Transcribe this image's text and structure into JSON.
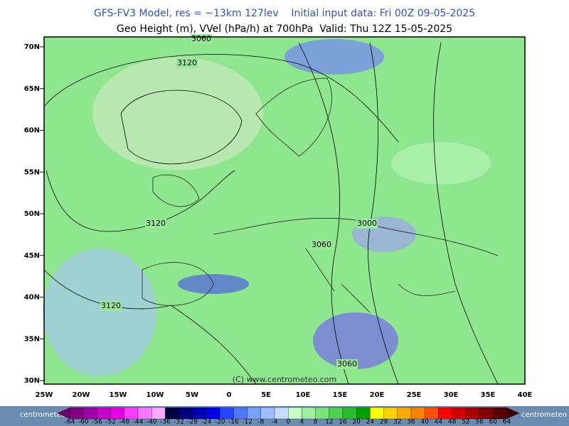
{
  "header": {
    "title_line1": "GFS-FV3 Model, res = ~13km 127lev    Initial input data: Fri 00Z 09-05-2025",
    "title_line2": "Geo Height (m), VVel (hPa/h) at 700hPa  Valid: Thu 12Z 15-05-2025"
  },
  "map": {
    "lat_labels": [
      "70N",
      "65N",
      "60N",
      "55N",
      "50N",
      "45N",
      "40N",
      "35N",
      "30N"
    ],
    "lon_labels": [
      "25W",
      "20W",
      "15W",
      "10W",
      "5W",
      "0",
      "5E",
      "10E",
      "15E",
      "20E",
      "25E",
      "30E",
      "35E",
      "40E"
    ],
    "contour_labels": [
      "3060",
      "3120",
      "3120",
      "3000",
      "3060",
      "3120",
      "3060"
    ],
    "copyright": "(C) www.centrometeo.com"
  },
  "colorbar": {
    "labels": [
      "-64",
      "-60",
      "-56",
      "-52",
      "-48",
      "-44",
      "-40",
      "-36",
      "-32",
      "-28",
      "-24",
      "-20",
      "-16",
      "-12",
      "-8",
      "-4",
      "0",
      "4",
      "8",
      "12",
      "16",
      "20",
      "24",
      "28",
      "32",
      "36",
      "40",
      "44",
      "48",
      "52",
      "56",
      "60",
      "64"
    ],
    "colors": [
      "#800080",
      "#a000a8",
      "#c800c8",
      "#e600e6",
      "#ff3cff",
      "#ff78ff",
      "#ffaaff",
      "#000040",
      "#000080",
      "#0000b4",
      "#0000e6",
      "#2846ff",
      "#5078ff",
      "#78a0ff",
      "#a0beff",
      "#c8dcff",
      "#c8ffc8",
      "#a0f0a0",
      "#78e678",
      "#50d250",
      "#28be28",
      "#00a000",
      "#ffff00",
      "#ffd200",
      "#ffaa00",
      "#ff8200",
      "#ff5000",
      "#ff0000",
      "#d20000",
      "#aa0000",
      "#820000",
      "#5a0000"
    ],
    "low_end_color": "#6a006a",
    "high_end_color": "#3c0000",
    "logo": "centrometeo"
  }
}
